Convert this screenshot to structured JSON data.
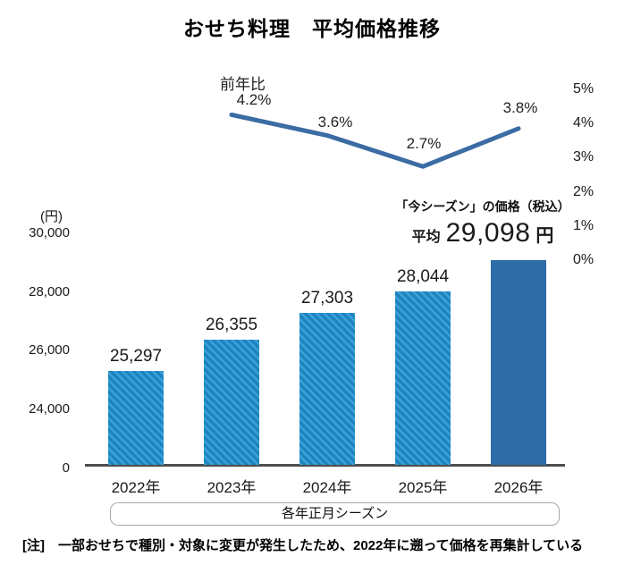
{
  "chart": {
    "title": "おせち料理　平均価格推移",
    "left_axis_unit": "(円)",
    "annotation": {
      "line1": "「今シーズン」の価格（税込）",
      "prefix": "平均",
      "value": "29,098",
      "suffix": "円"
    },
    "season_caption": "各年正月シーズン",
    "note": "[注]　一部おせちで種別・対象に変更が発生したため、2022年に遡って価格を再集計している"
  },
  "chart_data": [
    {
      "type": "bar",
      "title": "おせち料理　平均価格推移",
      "categories": [
        "2022年",
        "2023年",
        "2024年",
        "2025年",
        "2026年"
      ],
      "values": [
        25297,
        26355,
        27303,
        28044,
        29098
      ],
      "value_labels": [
        "25,297",
        "26,355",
        "27,303",
        "28,044",
        null
      ],
      "ylabel": "(円)",
      "yticks": [
        "30,000",
        "28,000",
        "26,000",
        "24,000",
        "0"
      ],
      "ylim": [
        24000,
        30000
      ],
      "axis_break": true,
      "grid": false,
      "bar_styles": [
        "hatched",
        "hatched",
        "hatched",
        "hatched",
        "solid"
      ],
      "colors": {
        "hatch_base": "#1d83c1",
        "hatch_stripe": "#3aa2d6",
        "solid": "#2e6da8"
      },
      "xaxis_caption": "各年正月シーズン"
    },
    {
      "type": "line",
      "name": "前年比",
      "categories": [
        "2023年",
        "2024年",
        "2025年",
        "2026年"
      ],
      "values": [
        4.2,
        3.6,
        2.7,
        3.8
      ],
      "value_labels": [
        "4.2%",
        "3.6%",
        "2.7%",
        "3.8%"
      ],
      "yticks": [
        "5%",
        "4%",
        "3%",
        "2%",
        "1%",
        "0%"
      ],
      "ylim": [
        0,
        5
      ],
      "legend_position": "top-left",
      "color": "#3b6ca3"
    }
  ]
}
